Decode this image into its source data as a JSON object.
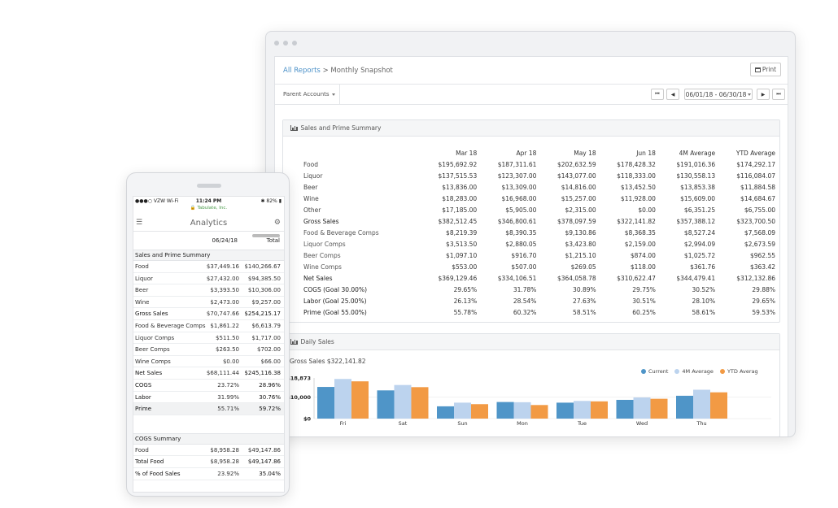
{
  "desktop": {
    "breadcrumb": {
      "link": "All Reports",
      "separator": ">",
      "current": "Monthly Snapshot"
    },
    "print_label": "Print",
    "parent_accounts_label": "Parent Accounts",
    "date_range": "06/01/18 - 06/30/18",
    "summary": {
      "title": "Sales and Prime Summary",
      "columns": [
        "Mar 18",
        "Apr 18",
        "May 18",
        "Jun 18",
        "4M Average",
        "YTD Average"
      ],
      "rows": [
        {
          "label": "Food",
          "values": [
            "$195,692.92",
            "$187,311.61",
            "$202,632.59",
            "$178,428.32",
            "$191,016.36",
            "$174,292.17"
          ]
        },
        {
          "label": "Liquor",
          "values": [
            "$137,515.53",
            "$123,307.00",
            "$143,077.00",
            "$118,333.00",
            "$130,558.13",
            "$116,084.07"
          ]
        },
        {
          "label": "Beer",
          "values": [
            "$13,836.00",
            "$13,309.00",
            "$14,816.00",
            "$13,452.50",
            "$13,853.38",
            "$11,884.58"
          ]
        },
        {
          "label": "Wine",
          "values": [
            "$18,283.00",
            "$16,968.00",
            "$15,257.00",
            "$11,928.00",
            "$15,609.00",
            "$14,684.67"
          ]
        },
        {
          "label": "Other",
          "values": [
            "$17,185.00",
            "$5,905.00",
            "$2,315.00",
            "$0.00",
            "$6,351.25",
            "$6,755.00"
          ]
        },
        {
          "label": "Gross Sales",
          "values": [
            "$382,512.45",
            "$346,800.61",
            "$378,097.59",
            "$322,141.82",
            "$357,388.12",
            "$323,700.50"
          ]
        },
        {
          "label": "Food & Beverage Comps",
          "values": [
            "$8,219.39",
            "$8,390.35",
            "$9,130.86",
            "$8,368.35",
            "$8,527.24",
            "$7,568.09"
          ]
        },
        {
          "label": "Liquor Comps",
          "values": [
            "$3,513.50",
            "$2,880.05",
            "$3,423.80",
            "$2,159.00",
            "$2,994.09",
            "$2,673.59"
          ]
        },
        {
          "label": "Beer Comps",
          "values": [
            "$1,097.10",
            "$916.70",
            "$1,215.10",
            "$874.00",
            "$1,025.72",
            "$962.55"
          ]
        },
        {
          "label": "Wine Comps",
          "values": [
            "$553.00",
            "$507.00",
            "$269.05",
            "$118.00",
            "$361.76",
            "$363.42"
          ]
        },
        {
          "label": "Net Sales",
          "values": [
            "$369,129.46",
            "$334,106.51",
            "$364,058.78",
            "$310,622.47",
            "$344,479.41",
            "$312,132.86"
          ]
        },
        {
          "label": "COGS (Goal 30.00%)",
          "values": [
            "29.65%",
            "31.78%",
            "30.89%",
            "29.75%",
            "30.52%",
            "29.88%"
          ]
        },
        {
          "label": "Labor (Goal 25.00%)",
          "values": [
            "26.13%",
            "28.54%",
            "27.63%",
            "30.51%",
            "28.10%",
            "29.65%"
          ]
        },
        {
          "label": "Prime (Goal 55.00%)",
          "values": [
            "55.78%",
            "60.32%",
            "58.51%",
            "60.25%",
            "58.61%",
            "59.53%"
          ]
        }
      ]
    },
    "daily": {
      "title": "Daily Sales",
      "gross_label": "Gross Sales $322,141.82"
    }
  },
  "chart_data": {
    "type": "bar",
    "categories": [
      "Fri",
      "Sat",
      "Sun",
      "Mon",
      "Tue",
      "Wed",
      "Thu"
    ],
    "series": [
      {
        "name": "Current",
        "color": "#4f95c8",
        "values": [
          14700,
          13100,
          5700,
          7700,
          7400,
          8700,
          10600
        ]
      },
      {
        "name": "4M Average",
        "color": "#bcd3ee",
        "values": [
          18400,
          15600,
          7400,
          7600,
          8200,
          9800,
          13400
        ]
      },
      {
        "name": "YTD Averag",
        "color": "#f29a44",
        "values": [
          17300,
          14600,
          6700,
          6300,
          8000,
          9200,
          12200
        ]
      }
    ],
    "y_ticks": [
      "$18,873",
      "$10,000",
      "$0"
    ],
    "ylim": [
      0,
      18873
    ],
    "legend_position": "top-right"
  },
  "phone": {
    "status": {
      "carrier": "VZW Wi-Fi",
      "time": "11:24 PM",
      "battery": "82%"
    },
    "domain": "Tabulate, Inc.",
    "title": "Analytics",
    "columns": [
      "06/24/18",
      "Total"
    ],
    "sections": [
      {
        "title": "Sales and Prime Summary",
        "rows": [
          {
            "label": "Food",
            "values": [
              "$37,449.16",
              "$140,266.67"
            ]
          },
          {
            "label": "Liquor",
            "values": [
              "$27,432.00",
              "$94,385.50"
            ]
          },
          {
            "label": "Beer",
            "values": [
              "$3,393.50",
              "$10,306.00"
            ]
          },
          {
            "label": "Wine",
            "values": [
              "$2,473.00",
              "$9,257.00"
            ]
          },
          {
            "label": "Gross Sales",
            "values": [
              "$70,747.66",
              "$254,215.17"
            ]
          },
          {
            "label": "Food & Beverage Comps",
            "values": [
              "$1,861.22",
              "$6,613.79"
            ]
          },
          {
            "label": "Liquor Comps",
            "values": [
              "$511.50",
              "$1,717.00"
            ]
          },
          {
            "label": "Beer Comps",
            "values": [
              "$263.50",
              "$702.00"
            ]
          },
          {
            "label": "Wine Comps",
            "values": [
              "$0.00",
              "$66.00"
            ]
          },
          {
            "label": "Net Sales",
            "values": [
              "$68,111.44",
              "$245,116.38"
            ]
          },
          {
            "label": "COGS",
            "values": [
              "23.72%",
              "28.96%"
            ]
          },
          {
            "label": "Labor",
            "values": [
              "31.99%",
              "30.76%"
            ]
          },
          {
            "label": "Prime",
            "values": [
              "55.71%",
              "59.72%"
            ]
          }
        ]
      },
      {
        "title": "COGS Summary",
        "rows": [
          {
            "label": "Food",
            "values": [
              "$8,958.28",
              "$49,147.86"
            ]
          },
          {
            "label": "Total Food",
            "values": [
              "$8,958.28",
              "$49,147.86"
            ]
          },
          {
            "label": "% of Food Sales",
            "values": [
              "23.92%",
              "35.04%"
            ]
          }
        ]
      }
    ]
  }
}
